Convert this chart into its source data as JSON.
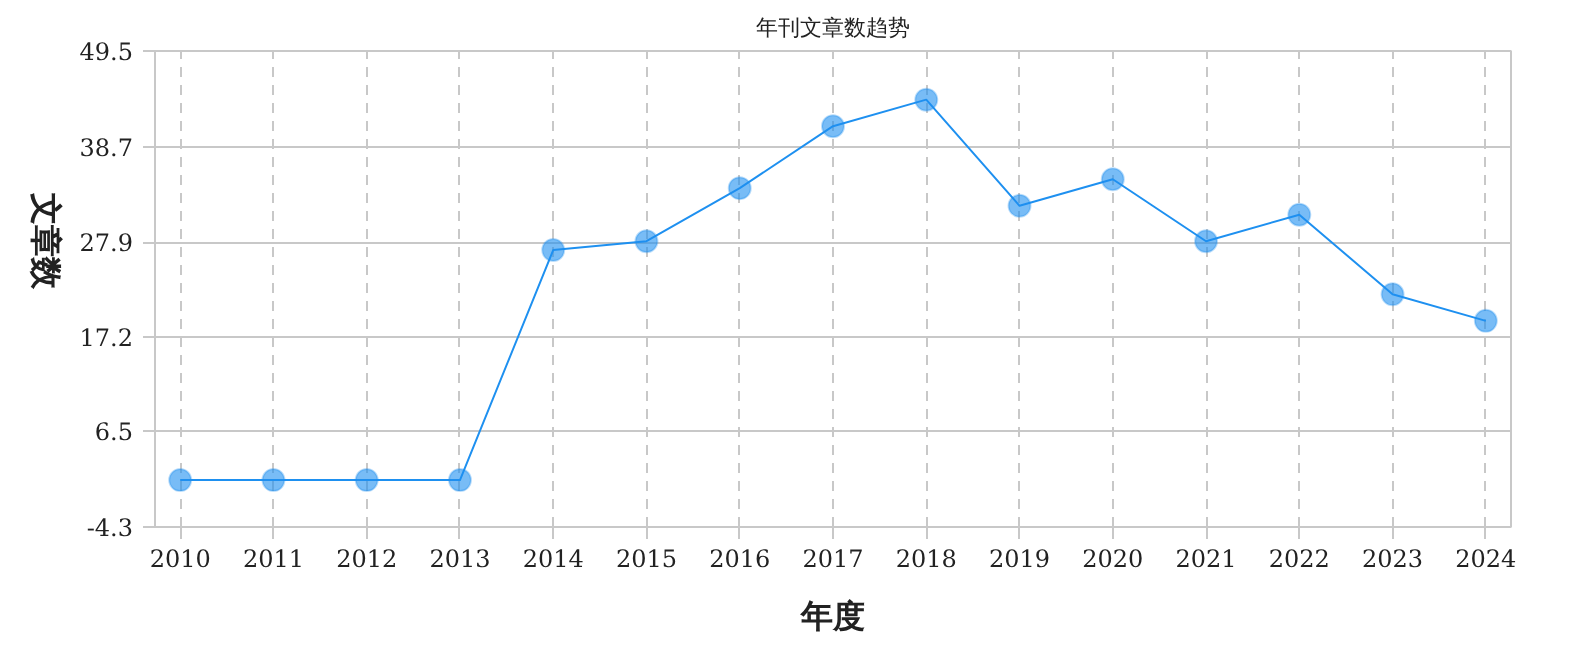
{
  "chart_data": {
    "type": "line",
    "title": "年刊文章数趋势",
    "xlabel": "年度",
    "ylabel": "文章数",
    "categories": [
      "2010",
      "2011",
      "2012",
      "2013",
      "2014",
      "2015",
      "2016",
      "2017",
      "2018",
      "2019",
      "2020",
      "2021",
      "2022",
      "2023",
      "2024"
    ],
    "series": [
      {
        "color": "#1e90f0",
        "values": [
          1,
          1,
          1,
          1,
          27,
          28,
          34,
          41,
          44,
          32,
          35,
          28,
          31,
          22,
          19
        ]
      }
    ],
    "ylim": [
      -4.3,
      49.5
    ],
    "yticks": [
      -4.3,
      6.5,
      17.2,
      27.9,
      38.7,
      49.5
    ],
    "grid": true,
    "marker": "circle",
    "line_style": "solid"
  }
}
